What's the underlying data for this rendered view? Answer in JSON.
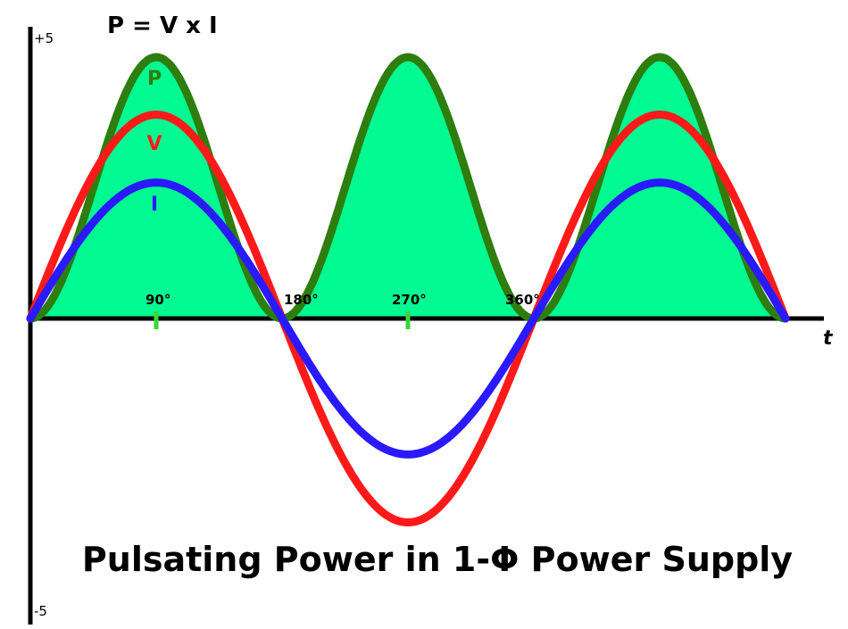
{
  "chart_data": {
    "type": "line",
    "title": "Pulsating Power in 1-Φ Power Supply",
    "formula": "P = V x I",
    "xlabel": "t",
    "ylim": [
      -5,
      5
    ],
    "ylim_labels": {
      "top": "+5",
      "bottom": "-5"
    },
    "x_ticks": [
      {
        "deg": 90,
        "label": "90°"
      },
      {
        "deg": 180,
        "label": "180°"
      },
      {
        "deg": 270,
        "label": "270°"
      },
      {
        "deg": 360,
        "label": "360°"
      }
    ],
    "x_range_deg": [
      0,
      540
    ],
    "series": [
      {
        "name": "P",
        "shape": "sin^2",
        "amplitude": 5.0,
        "min": 0,
        "max": 5.0,
        "color": "#2e7d0f",
        "fill": "#00f990"
      },
      {
        "name": "V",
        "shape": "sin",
        "amplitude": 3.9,
        "min": -3.9,
        "max": 3.9,
        "color": "#ff1a1a"
      },
      {
        "name": "I",
        "shape": "sin",
        "amplitude": 2.6,
        "min": -2.6,
        "max": 2.6,
        "color": "#2a1aff"
      }
    ],
    "tick_mark_color": "#3ad63a",
    "axis_color": "#000000"
  }
}
